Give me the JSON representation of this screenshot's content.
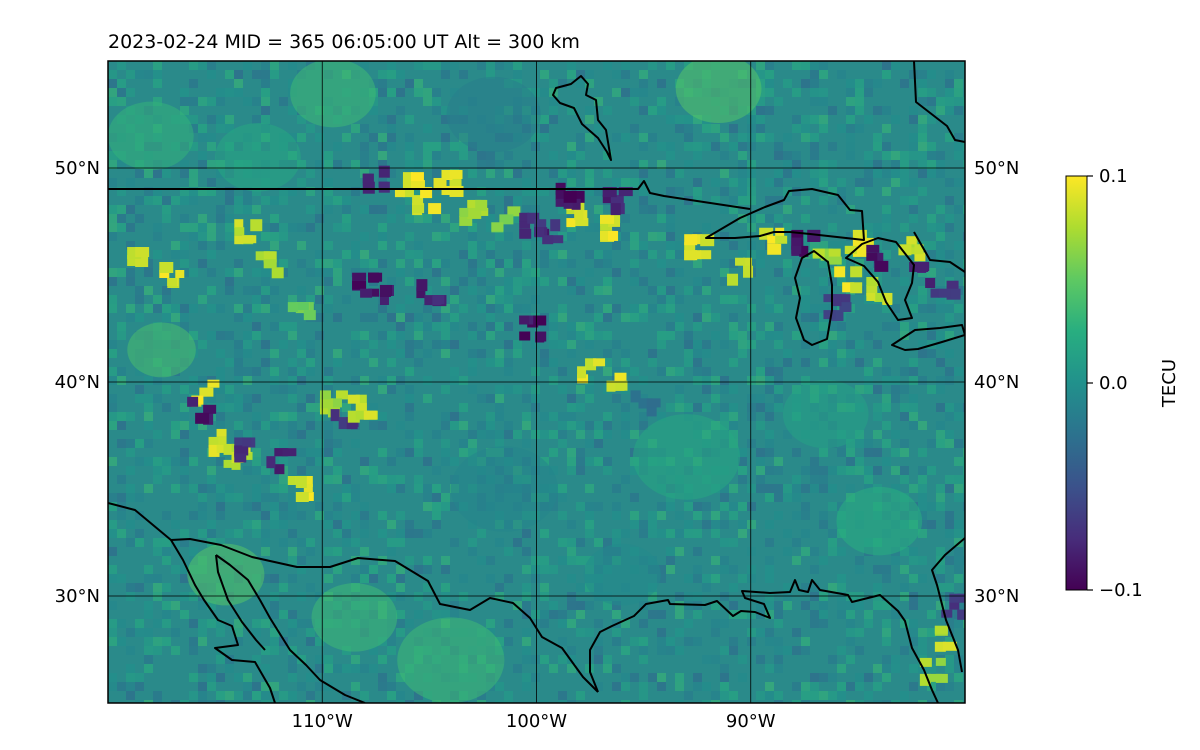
{
  "title": "2023-02-24  MID = 365    06:05:00  UT  Alt = 300 km",
  "map": {
    "lon_range": [
      -120,
      -80
    ],
    "lat_range": [
      25,
      55
    ],
    "lon_ticks": [
      {
        "value": -110,
        "label": "110°W"
      },
      {
        "value": -100,
        "label": "100°W"
      },
      {
        "value": -90,
        "label": "90°W"
      }
    ],
    "lat_ticks": [
      {
        "value": 50,
        "label": "50°N"
      },
      {
        "value": 40,
        "label": "40°N"
      },
      {
        "value": 30,
        "label": "30°N"
      }
    ],
    "gridlines": true,
    "colormap": "viridis",
    "background_color": "#2a8a8a",
    "anomalies": [
      {
        "lon": -118.5,
        "lat": 45.7,
        "v": 0.09
      },
      {
        "lon": -117.0,
        "lat": 45.0,
        "v": 0.1
      },
      {
        "lon": -115.5,
        "lat": 39.5,
        "v": 0.1
      },
      {
        "lon": -115.7,
        "lat": 38.7,
        "v": -0.1
      },
      {
        "lon": -114.7,
        "lat": 37.2,
        "v": 0.1
      },
      {
        "lon": -114.0,
        "lat": 36.5,
        "v": 0.09
      },
      {
        "lon": -113.5,
        "lat": 36.8,
        "v": -0.08
      },
      {
        "lon": -112.0,
        "lat": 36.3,
        "v": -0.09
      },
      {
        "lon": -111.0,
        "lat": 35.0,
        "v": 0.1
      },
      {
        "lon": -111.0,
        "lat": 43.5,
        "v": 0.06
      },
      {
        "lon": -112.5,
        "lat": 45.5,
        "v": 0.08
      },
      {
        "lon": -113.5,
        "lat": 47.0,
        "v": 0.09
      },
      {
        "lon": -109.5,
        "lat": 39.0,
        "v": 0.08
      },
      {
        "lon": -109.0,
        "lat": 38.5,
        "v": -0.08
      },
      {
        "lon": -108.2,
        "lat": 38.8,
        "v": 0.09
      },
      {
        "lon": -108.0,
        "lat": 44.5,
        "v": -0.1
      },
      {
        "lon": -106.7,
        "lat": 44.3,
        "v": -0.1
      },
      {
        "lon": -105.0,
        "lat": 44.2,
        "v": -0.09
      },
      {
        "lon": -107.5,
        "lat": 49.5,
        "v": -0.09
      },
      {
        "lon": -106.0,
        "lat": 49.2,
        "v": 0.1
      },
      {
        "lon": -105.2,
        "lat": 48.5,
        "v": 0.1
      },
      {
        "lon": -104.2,
        "lat": 49.3,
        "v": 0.1
      },
      {
        "lon": -103.0,
        "lat": 47.9,
        "v": 0.08
      },
      {
        "lon": -101.5,
        "lat": 47.6,
        "v": 0.07
      },
      {
        "lon": -100.2,
        "lat": 47.3,
        "v": -0.09
      },
      {
        "lon": -99.5,
        "lat": 47.0,
        "v": -0.08
      },
      {
        "lon": -98.0,
        "lat": 47.8,
        "v": 0.1
      },
      {
        "lon": -96.8,
        "lat": 47.2,
        "v": 0.1
      },
      {
        "lon": -98.5,
        "lat": 48.7,
        "v": -0.1
      },
      {
        "lon": -96.3,
        "lat": 48.5,
        "v": -0.09
      },
      {
        "lon": -100.2,
        "lat": 42.5,
        "v": -0.1
      },
      {
        "lon": -97.5,
        "lat": 40.5,
        "v": 0.1
      },
      {
        "lon": -96.5,
        "lat": 40.2,
        "v": 0.1
      },
      {
        "lon": -95.0,
        "lat": 39.0,
        "v": -0.03
      },
      {
        "lon": -92.5,
        "lat": 46.3,
        "v": 0.1
      },
      {
        "lon": -90.5,
        "lat": 45.2,
        "v": 0.09
      },
      {
        "lon": -89.0,
        "lat": 46.6,
        "v": 0.1
      },
      {
        "lon": -87.5,
        "lat": 46.5,
        "v": -0.1
      },
      {
        "lon": -86.5,
        "lat": 46.0,
        "v": 0.08
      },
      {
        "lon": -85.0,
        "lat": 46.5,
        "v": 0.1
      },
      {
        "lon": -84.0,
        "lat": 45.8,
        "v": -0.1
      },
      {
        "lon": -82.5,
        "lat": 46.2,
        "v": 0.09
      },
      {
        "lon": -82.0,
        "lat": 45.0,
        "v": -0.09
      },
      {
        "lon": -81.0,
        "lat": 44.5,
        "v": -0.08
      },
      {
        "lon": -85.5,
        "lat": 44.8,
        "v": 0.1
      },
      {
        "lon": -84.0,
        "lat": 44.3,
        "v": 0.09
      },
      {
        "lon": -86.0,
        "lat": 43.5,
        "v": -0.07
      },
      {
        "lon": -80.8,
        "lat": 28.0,
        "v": 0.09
      },
      {
        "lon": -80.5,
        "lat": 29.5,
        "v": -0.08
      },
      {
        "lon": -81.5,
        "lat": 26.5,
        "v": 0.08
      }
    ],
    "patches": [
      {
        "lon": -117.5,
        "lat": 41.5,
        "r": 1.6,
        "v": 0.04
      },
      {
        "lon": -114.5,
        "lat": 31.0,
        "r": 1.8,
        "v": 0.045
      },
      {
        "lon": -104.0,
        "lat": 27.0,
        "r": 2.5,
        "v": 0.035
      },
      {
        "lon": -91.5,
        "lat": 53.7,
        "r": 2.0,
        "v": 0.045
      },
      {
        "lon": -102.0,
        "lat": 52.5,
        "r": 2.2,
        "v": -0.015
      },
      {
        "lon": -101.5,
        "lat": 35.0,
        "r": 2.5,
        "v": -0.01
      },
      {
        "lon": -93.0,
        "lat": 36.5,
        "r": 2.5,
        "v": 0.02
      },
      {
        "lon": -86.5,
        "lat": 38.5,
        "r": 2.0,
        "v": 0.015
      },
      {
        "lon": -113.0,
        "lat": 50.5,
        "r": 2.0,
        "v": 0.02
      },
      {
        "lon": -108.5,
        "lat": 29.0,
        "r": 2.0,
        "v": 0.035
      },
      {
        "lon": -96.0,
        "lat": 31.0,
        "r": 1.8,
        "v": -0.005
      },
      {
        "lon": -84.0,
        "lat": 33.5,
        "r": 2.0,
        "v": 0.025
      },
      {
        "lon": -118.0,
        "lat": 51.5,
        "r": 2.0,
        "v": 0.03
      },
      {
        "lon": -109.5,
        "lat": 53.5,
        "r": 2.0,
        "v": 0.035
      }
    ]
  },
  "colorbar": {
    "label": "TECU",
    "min": -0.1,
    "max": 0.1,
    "ticks": [
      {
        "value": 0.1,
        "label": "0.1"
      },
      {
        "value": 0.0,
        "label": "0.0"
      },
      {
        "value": -0.1,
        "label": "−0.1"
      }
    ]
  }
}
